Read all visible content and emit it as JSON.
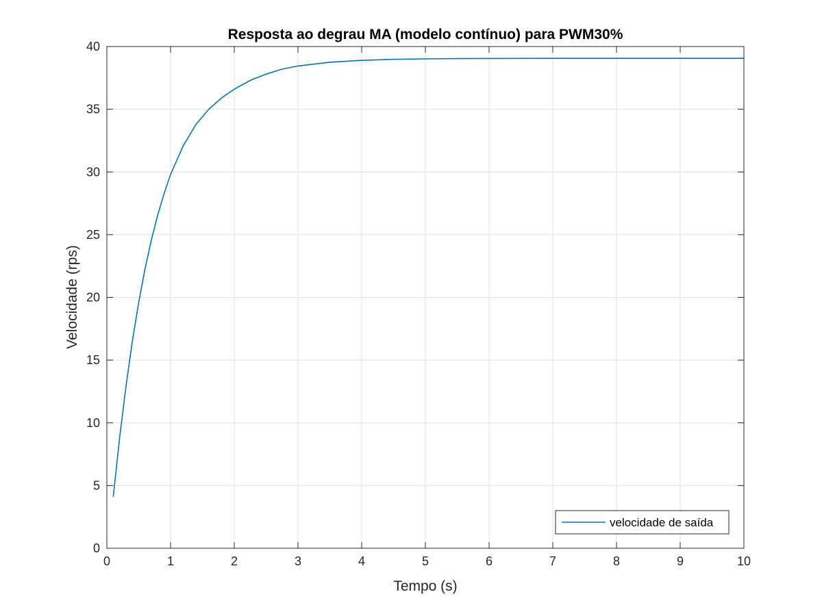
{
  "chart_data": {
    "type": "line",
    "title": "Resposta ao degrau MA (modelo contínuo) para PWM30%",
    "xlabel": "Tempo (s)",
    "ylabel": "Velocidade (rps)",
    "xlim": [
      0,
      10
    ],
    "ylim": [
      0,
      40
    ],
    "xticks": [
      0,
      1,
      2,
      3,
      4,
      5,
      6,
      7,
      8,
      9,
      10
    ],
    "yticks": [
      0,
      5,
      10,
      15,
      20,
      25,
      30,
      35,
      40
    ],
    "grid": true,
    "legend": {
      "location": "bottom-right",
      "entries": [
        "velocidade de saída"
      ]
    },
    "series": [
      {
        "name": "velocidade de saída",
        "color": "#0072BD",
        "x": [
          0.1,
          0.2,
          0.3,
          0.4,
          0.5,
          0.6,
          0.7,
          0.8,
          0.9,
          1.0,
          1.2,
          1.4,
          1.6,
          1.8,
          2.0,
          2.25,
          2.5,
          2.75,
          3.0,
          3.5,
          4.0,
          4.5,
          5.0,
          5.5,
          6.0,
          7.0,
          8.0,
          9.0,
          10.0
        ],
        "y": [
          4.1,
          8.8,
          12.9,
          16.5,
          19.6,
          22.3,
          24.6,
          26.6,
          28.3,
          29.8,
          32.1,
          33.8,
          35.0,
          35.9,
          36.6,
          37.3,
          37.8,
          38.2,
          38.45,
          38.75,
          38.9,
          38.98,
          39.02,
          39.04,
          39.05,
          39.06,
          39.06,
          39.06,
          39.06
        ]
      }
    ]
  }
}
